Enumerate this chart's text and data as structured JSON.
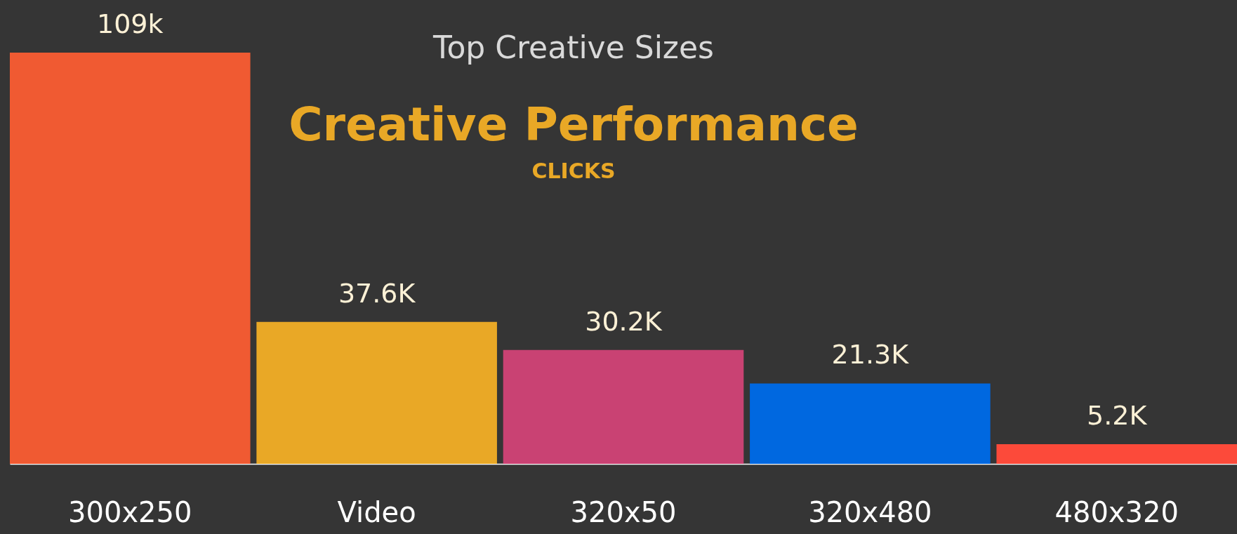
{
  "chart_data": {
    "type": "bar",
    "title": "Creative Performance",
    "subtitle": "CLICKS",
    "annotations": [
      "Top Creative Sizes"
    ],
    "categories": [
      "300x250",
      "Video",
      "320x50",
      "320x480",
      "480x320"
    ],
    "values": [
      109,
      37.6,
      30.2,
      21.3,
      5.2
    ],
    "value_labels": [
      "109k",
      "37.6K",
      "30.2K",
      "21.3K",
      "5.2K"
    ],
    "colors": [
      "#f05a32",
      "#e9a826",
      "#c94273",
      "#0068e0",
      "#fc4a3a"
    ],
    "grid": false
  }
}
